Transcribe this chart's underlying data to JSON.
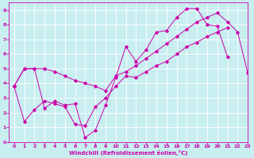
{
  "xlabel": "Windchill (Refroidissement éolien,°C)",
  "bg_color": "#c8eef0",
  "line_color": "#cc00aa",
  "grid_color": "#ffffff",
  "xlim": [
    -0.5,
    23
  ],
  "ylim": [
    0,
    9.5
  ],
  "xticks": [
    0,
    1,
    2,
    3,
    4,
    5,
    6,
    7,
    8,
    9,
    10,
    11,
    12,
    13,
    14,
    15,
    16,
    17,
    18,
    19,
    20,
    21,
    22,
    23
  ],
  "yticks": [
    0,
    1,
    2,
    3,
    4,
    5,
    6,
    7,
    8,
    9
  ],
  "line1_y": [
    3.8,
    5.0,
    5.0,
    5.0,
    4.8,
    4.5,
    4.2,
    4.0,
    3.8,
    3.5,
    4.5,
    4.8,
    5.2,
    5.7,
    6.2,
    6.7,
    7.2,
    7.7,
    8.2,
    8.5,
    8.8,
    8.2,
    7.5,
    4.7
  ],
  "line2_y": [
    3.8,
    5.0,
    5.0,
    2.3,
    2.8,
    2.5,
    2.6,
    0.3,
    0.8,
    2.5,
    4.4,
    6.5,
    5.5,
    6.3,
    7.5,
    7.6,
    8.5,
    9.1,
    9.1,
    8.0,
    7.9,
    5.8,
    null,
    null
  ],
  "line3_y": [
    3.8,
    1.4,
    2.2,
    2.8,
    2.6,
    2.4,
    1.2,
    1.1,
    2.4,
    3.0,
    3.8,
    4.5,
    4.4,
    4.8,
    5.2,
    5.5,
    6.0,
    6.5,
    6.8,
    7.2,
    7.5,
    7.8,
    null,
    null
  ]
}
